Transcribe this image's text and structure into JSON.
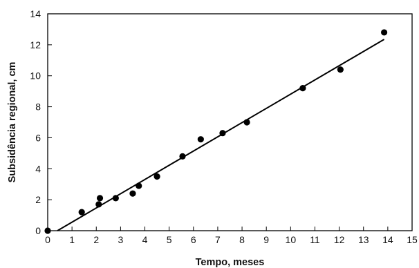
{
  "chart_data": {
    "type": "scatter",
    "xlabel": "Tempo, meses",
    "ylabel": "Subsidência regional, cm",
    "xlim": [
      0,
      15
    ],
    "ylim": [
      0,
      14
    ],
    "xticks": [
      0,
      1,
      2,
      3,
      4,
      5,
      6,
      7,
      8,
      9,
      10,
      11,
      12,
      13,
      14,
      15
    ],
    "yticks": [
      0,
      2,
      4,
      6,
      8,
      10,
      12,
      14
    ],
    "grid": false,
    "legend": false,
    "series": [
      {
        "kind": "points",
        "x": [
          0,
          1.4,
          2.1,
          2.15,
          2.8,
          3.5,
          3.75,
          4.5,
          5.55,
          6.3,
          7.2,
          8.2,
          10.5,
          12.05,
          13.85
        ],
        "y": [
          0,
          1.2,
          1.7,
          2.1,
          2.1,
          2.4,
          2.9,
          3.5,
          4.8,
          5.9,
          6.3,
          7.0,
          9.2,
          10.4,
          12.8
        ]
      },
      {
        "kind": "fit-line",
        "x": [
          0.4,
          13.85
        ],
        "y": [
          0,
          12.35
        ]
      }
    ],
    "colors": {
      "marker": "#000000",
      "line": "#000000",
      "axis": "#000000"
    }
  }
}
